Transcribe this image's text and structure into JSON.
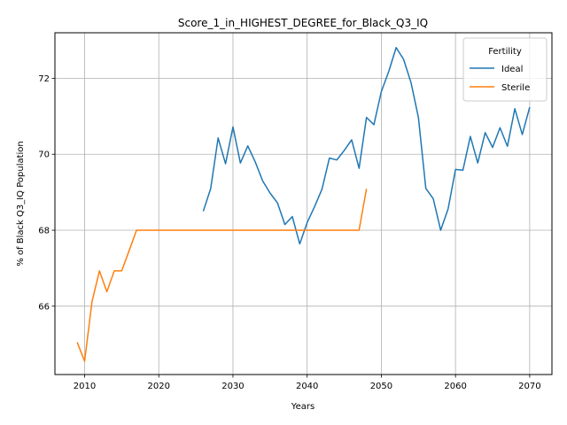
{
  "chart_data": {
    "type": "line",
    "title": "Score_1_in_HIGHEST_DEGREE_for_Black_Q3_IQ",
    "xlabel": "Years",
    "ylabel": "% of Black Q3_IQ Population",
    "xlim": [
      2006,
      2073
    ],
    "ylim": [
      64.2,
      73.2
    ],
    "xticks": [
      2010,
      2020,
      2030,
      2040,
      2050,
      2060,
      2070
    ],
    "yticks": [
      66,
      68,
      70,
      72
    ],
    "grid": true,
    "legend": {
      "title": "Fertility",
      "placement": "top-right"
    },
    "series": [
      {
        "name": "Ideal",
        "color": "#1f77b4",
        "x": [
          2026,
          2027,
          2028,
          2029,
          2030,
          2031,
          2032,
          2033,
          2034,
          2035,
          2036,
          2037,
          2038,
          2039,
          2040,
          2041,
          2042,
          2043,
          2044,
          2045,
          2046,
          2047,
          2048,
          2049,
          2050,
          2051,
          2052,
          2053,
          2054,
          2055,
          2056,
          2057,
          2058,
          2059,
          2060,
          2061,
          2062,
          2063,
          2064,
          2065,
          2066,
          2067,
          2068,
          2069,
          2070
        ],
        "y": [
          68.5,
          69.1,
          70.43,
          69.75,
          70.72,
          69.77,
          70.22,
          69.8,
          69.3,
          68.98,
          68.72,
          68.15,
          68.36,
          67.64,
          68.2,
          68.62,
          69.08,
          69.9,
          69.85,
          70.1,
          70.38,
          69.63,
          70.97,
          70.78,
          71.65,
          72.18,
          72.81,
          72.5,
          71.89,
          70.97,
          69.1,
          68.83,
          68.0,
          68.56,
          69.6,
          69.58,
          70.47,
          69.77,
          70.57,
          70.18,
          70.7,
          70.21,
          71.2,
          70.52,
          71.24
        ]
      },
      {
        "name": "Sterile",
        "color": "#ff7f0e",
        "x": [
          2009,
          2010,
          2011,
          2012,
          2013,
          2014,
          2015,
          2016,
          2017,
          2018,
          2019,
          2020,
          2021,
          2022,
          2023,
          2024,
          2025,
          2026,
          2027,
          2028,
          2029,
          2030,
          2031,
          2032,
          2033,
          2034,
          2035,
          2036,
          2037,
          2038,
          2039,
          2040,
          2041,
          2042,
          2043,
          2044,
          2045,
          2046,
          2047,
          2048
        ],
        "y": [
          65.05,
          64.55,
          66.12,
          66.93,
          66.38,
          66.93,
          66.93,
          67.46,
          68.0,
          68.0,
          68.0,
          68.0,
          68.0,
          68.0,
          68.0,
          68.0,
          68.0,
          68.0,
          68.0,
          68.0,
          68.0,
          68.0,
          68.0,
          68.0,
          68.0,
          68.0,
          68.0,
          68.0,
          68.0,
          68.0,
          68.0,
          68.0,
          68.0,
          68.0,
          68.0,
          68.0,
          68.0,
          68.0,
          68.0,
          69.09
        ]
      }
    ]
  }
}
